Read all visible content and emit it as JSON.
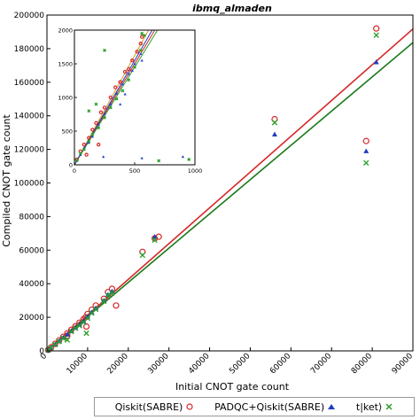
{
  "chart_data": {
    "type": "scatter",
    "title": "ibmq_almaden",
    "xlabel": "Initial CNOT gate count",
    "ylabel": "Compiled CNOT gate count",
    "xlim": [
      0,
      90000
    ],
    "ylim": [
      0,
      200000
    ],
    "xticks": [
      "0",
      "10000",
      "20000",
      "30000",
      "40000",
      "50000",
      "60000",
      "70000",
      "80000",
      "90000"
    ],
    "yticks": [
      "0",
      "20000",
      "40000",
      "60000",
      "80000",
      "100000",
      "120000",
      "140000",
      "160000",
      "180000",
      "200000"
    ],
    "legend_position": "bottom",
    "grid": false,
    "series": [
      {
        "name": "Qiskit(SABRE)",
        "marker": "circle",
        "color": "#d62728",
        "points": [
          [
            300,
            600
          ],
          [
            1000,
            2100
          ],
          [
            2000,
            4200
          ],
          [
            3000,
            6300
          ],
          [
            4000,
            8400
          ],
          [
            5000,
            10500
          ],
          [
            6000,
            12600
          ],
          [
            7000,
            14700
          ],
          [
            8000,
            16800
          ],
          [
            9000,
            18900
          ],
          [
            9500,
            20000
          ],
          [
            10000,
            22000
          ],
          [
            11000,
            24500
          ],
          [
            12000,
            27000
          ],
          [
            14000,
            31000
          ],
          [
            15000,
            35000
          ],
          [
            16000,
            37000
          ],
          [
            17000,
            27000
          ],
          [
            23500,
            59000
          ],
          [
            26500,
            67000
          ],
          [
            27500,
            68000
          ],
          [
            56000,
            138000
          ],
          [
            78500,
            125000
          ],
          [
            81000,
            192000
          ],
          [
            5000,
            9000
          ],
          [
            9700,
            14500
          ]
        ]
      },
      {
        "name": "PADQC+Qiskit(SABRE)",
        "marker": "triangle",
        "color": "#1f3fbf",
        "points": [
          [
            300,
            500
          ],
          [
            1000,
            1900
          ],
          [
            2000,
            3900
          ],
          [
            3000,
            5900
          ],
          [
            4000,
            7900
          ],
          [
            5000,
            9800
          ],
          [
            6000,
            11800
          ],
          [
            7000,
            13800
          ],
          [
            8000,
            15700
          ],
          [
            9000,
            17700
          ],
          [
            10000,
            20500
          ],
          [
            11000,
            23000
          ],
          [
            12000,
            25500
          ],
          [
            14000,
            30000
          ],
          [
            15000,
            33500
          ],
          [
            16000,
            35500
          ],
          [
            26500,
            68000
          ],
          [
            56000,
            129000
          ],
          [
            78500,
            119000
          ],
          [
            81000,
            172000
          ]
        ]
      },
      {
        "name": "t|ket⟩",
        "marker": "x",
        "color": "#2ca02c",
        "points": [
          [
            300,
            450
          ],
          [
            1000,
            1800
          ],
          [
            2000,
            3700
          ],
          [
            3000,
            5600
          ],
          [
            4000,
            7500
          ],
          [
            5000,
            6500
          ],
          [
            6000,
            11500
          ],
          [
            7000,
            13500
          ],
          [
            8000,
            15000
          ],
          [
            9000,
            17000
          ],
          [
            10000,
            19500
          ],
          [
            11000,
            22500
          ],
          [
            12000,
            24800
          ],
          [
            14000,
            29500
          ],
          [
            15000,
            33000
          ],
          [
            16000,
            34500
          ],
          [
            23500,
            57000
          ],
          [
            26500,
            66000
          ],
          [
            56000,
            136000
          ],
          [
            78500,
            112000
          ],
          [
            81000,
            188000
          ],
          [
            9700,
            10500
          ]
        ]
      }
    ],
    "fit_lines": [
      {
        "color": "#d62728",
        "slope": 2.13
      },
      {
        "color": "#1a7a1a",
        "slope": 2.04
      }
    ],
    "inset": {
      "xlim": [
        0,
        1000
      ],
      "ylim": [
        0,
        2000
      ],
      "xticks": [
        "0",
        "500",
        "1000"
      ],
      "yticks": [
        "0",
        "500",
        "1000",
        "1500",
        "2000"
      ],
      "fit_lines": [
        {
          "color": "#d62728",
          "slope": 3.0
        },
        {
          "color": "#e0a020",
          "slope": 3.25
        },
        {
          "color": "#2ca02c",
          "slope": 2.9
        },
        {
          "color": "#1f3fbf",
          "slope": 3.1
        }
      ],
      "series": [
        {
          "marker": "circle",
          "color": "#d62728",
          "points": [
            [
              20,
              80
            ],
            [
              50,
              200
            ],
            [
              80,
              300
            ],
            [
              120,
              400
            ],
            [
              150,
              520
            ],
            [
              180,
              620
            ],
            [
              220,
              780
            ],
            [
              250,
              850
            ],
            [
              300,
              1000
            ],
            [
              340,
              1150
            ],
            [
              380,
              1230
            ],
            [
              420,
              1380
            ],
            [
              450,
              1420
            ],
            [
              480,
              1550
            ],
            [
              520,
              1680
            ],
            [
              550,
              1800
            ],
            [
              560,
              1900
            ],
            [
              100,
              150
            ],
            [
              200,
              300
            ]
          ]
        },
        {
          "marker": "triangle",
          "color": "#1f3fbf",
          "points": [
            [
              20,
              60
            ],
            [
              50,
              150
            ],
            [
              80,
              250
            ],
            [
              120,
              330
            ],
            [
              150,
              420
            ],
            [
              200,
              600
            ],
            [
              250,
              760
            ],
            [
              300,
              900
            ],
            [
              350,
              1060
            ],
            [
              400,
              1200
            ],
            [
              450,
              1350
            ],
            [
              500,
              1500
            ],
            [
              550,
              1650
            ],
            [
              560,
              1550
            ],
            [
              480,
              1400
            ],
            [
              240,
              120
            ],
            [
              560,
              100
            ],
            [
              900,
              120
            ],
            [
              380,
              900
            ],
            [
              420,
              1050
            ]
          ]
        },
        {
          "marker": "x",
          "color": "#2ca02c",
          "points": [
            [
              20,
              70
            ],
            [
              50,
              170
            ],
            [
              80,
              230
            ],
            [
              120,
              350
            ],
            [
              150,
              450
            ],
            [
              200,
              550
            ],
            [
              250,
              700
            ],
            [
              300,
              850
            ],
            [
              350,
              980
            ],
            [
              400,
              1100
            ],
            [
              450,
              1260
            ],
            [
              500,
              1450
            ],
            [
              550,
              1700
            ],
            [
              560,
              1950
            ],
            [
              120,
              800
            ],
            [
              180,
              900
            ],
            [
              250,
              1700
            ],
            [
              580,
              1920
            ],
            [
              700,
              60
            ],
            [
              950,
              80
            ]
          ]
        }
      ]
    }
  }
}
